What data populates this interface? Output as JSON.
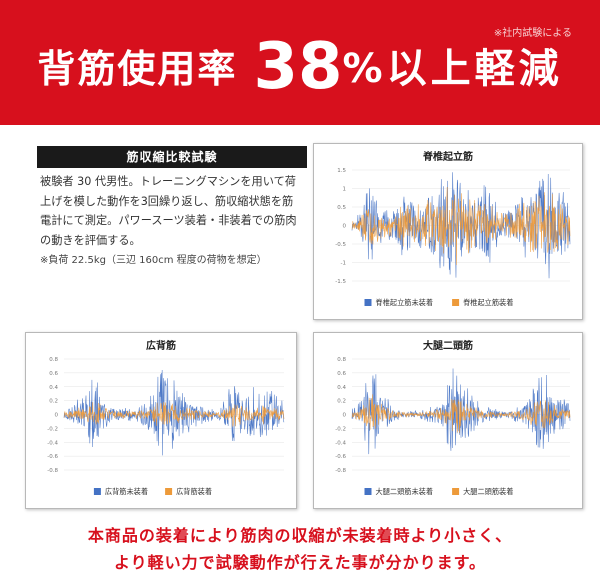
{
  "banner": {
    "note": "※社内試験による",
    "title_lead": "背筋使用率",
    "title_value": "38",
    "title_tail": "%以上軽減"
  },
  "test": {
    "heading": "筋収縮比較試験",
    "description": "被験者 30 代男性。トレーニングマシンを用いて荷上げを模した動作を3回繰り返し、筋収縮状態を筋電計にて測定。パワースーツ装着・非装着での筋肉の動きを評価する。",
    "note": "※負荷 22.5kg（三辺 160cm 程度の荷物を想定）"
  },
  "colors": {
    "banner_red": "#d7101d",
    "series_without": "#4472c4",
    "series_with": "#ed9a3a"
  },
  "footer": {
    "line1": "本商品の装着により筋肉の収縮が未装着時より小さく、",
    "line2": "より軽い力で試験動作が行えた事が分かります。"
  },
  "chart_data": [
    {
      "type": "line",
      "title": "脊椎起立筋",
      "ylim": [
        -1.5,
        1.5
      ],
      "yticks": [
        "1.5",
        "1",
        "0.5",
        "0",
        "-0.5",
        "-1",
        "-1.5"
      ],
      "grid": true,
      "legend_position": "bottom",
      "bursts": [
        0.08,
        0.24,
        0.45,
        0.62,
        0.88
      ],
      "series": [
        {
          "name": "脊椎起立筋未装着",
          "color": "#4472c4",
          "envelope": [
            0.15,
            0.6,
            0.35,
            0.8,
            1.1,
            1.3,
            0.7,
            0.45,
            1.0,
            1.25,
            0.8
          ]
        },
        {
          "name": "脊椎起立筋装着",
          "color": "#ed9a3a",
          "envelope": [
            0.12,
            0.4,
            0.3,
            0.6,
            0.9,
            1.1,
            0.5,
            0.35,
            0.8,
            1.0,
            0.55
          ]
        }
      ]
    },
    {
      "type": "line",
      "title": "広背筋",
      "ylim": [
        -0.8,
        0.8
      ],
      "yticks": [
        "0.8",
        "0.6",
        "0.4",
        "0.2",
        "0",
        "-0.2",
        "-0.4",
        "-0.6",
        "-0.8"
      ],
      "grid": true,
      "legend_position": "bottom",
      "bursts": [
        0.14,
        0.44,
        0.77
      ],
      "series": [
        {
          "name": "広背筋未装着",
          "color": "#4472c4",
          "envelope": [
            0.05,
            0.35,
            0.15,
            0.1,
            0.3,
            0.55,
            0.2,
            0.08,
            0.3,
            0.6,
            0.2
          ]
        },
        {
          "name": "広背筋装着",
          "color": "#ed9a3a",
          "envelope": [
            0.05,
            0.12,
            0.08,
            0.05,
            0.1,
            0.15,
            0.08,
            0.05,
            0.1,
            0.15,
            0.08
          ]
        }
      ]
    },
    {
      "type": "line",
      "title": "大腿二頭筋",
      "ylim": [
        -0.8,
        0.8
      ],
      "yticks": [
        "0.8",
        "0.6",
        "0.4",
        "0.2",
        "0",
        "-0.2",
        "-0.4",
        "-0.6",
        "-0.8"
      ],
      "grid": true,
      "legend_position": "bottom",
      "bursts": [
        0.09,
        0.47,
        0.86
      ],
      "series": [
        {
          "name": "大腿二頭筋未装着",
          "color": "#4472c4",
          "envelope": [
            0.1,
            0.45,
            0.1,
            0.05,
            0.2,
            0.55,
            0.15,
            0.05,
            0.2,
            0.45,
            0.2
          ]
        },
        {
          "name": "大腿二頭筋装着",
          "color": "#ed9a3a",
          "envelope": [
            0.05,
            0.2,
            0.06,
            0.03,
            0.1,
            0.2,
            0.06,
            0.03,
            0.1,
            0.2,
            0.06
          ]
        }
      ]
    }
  ]
}
